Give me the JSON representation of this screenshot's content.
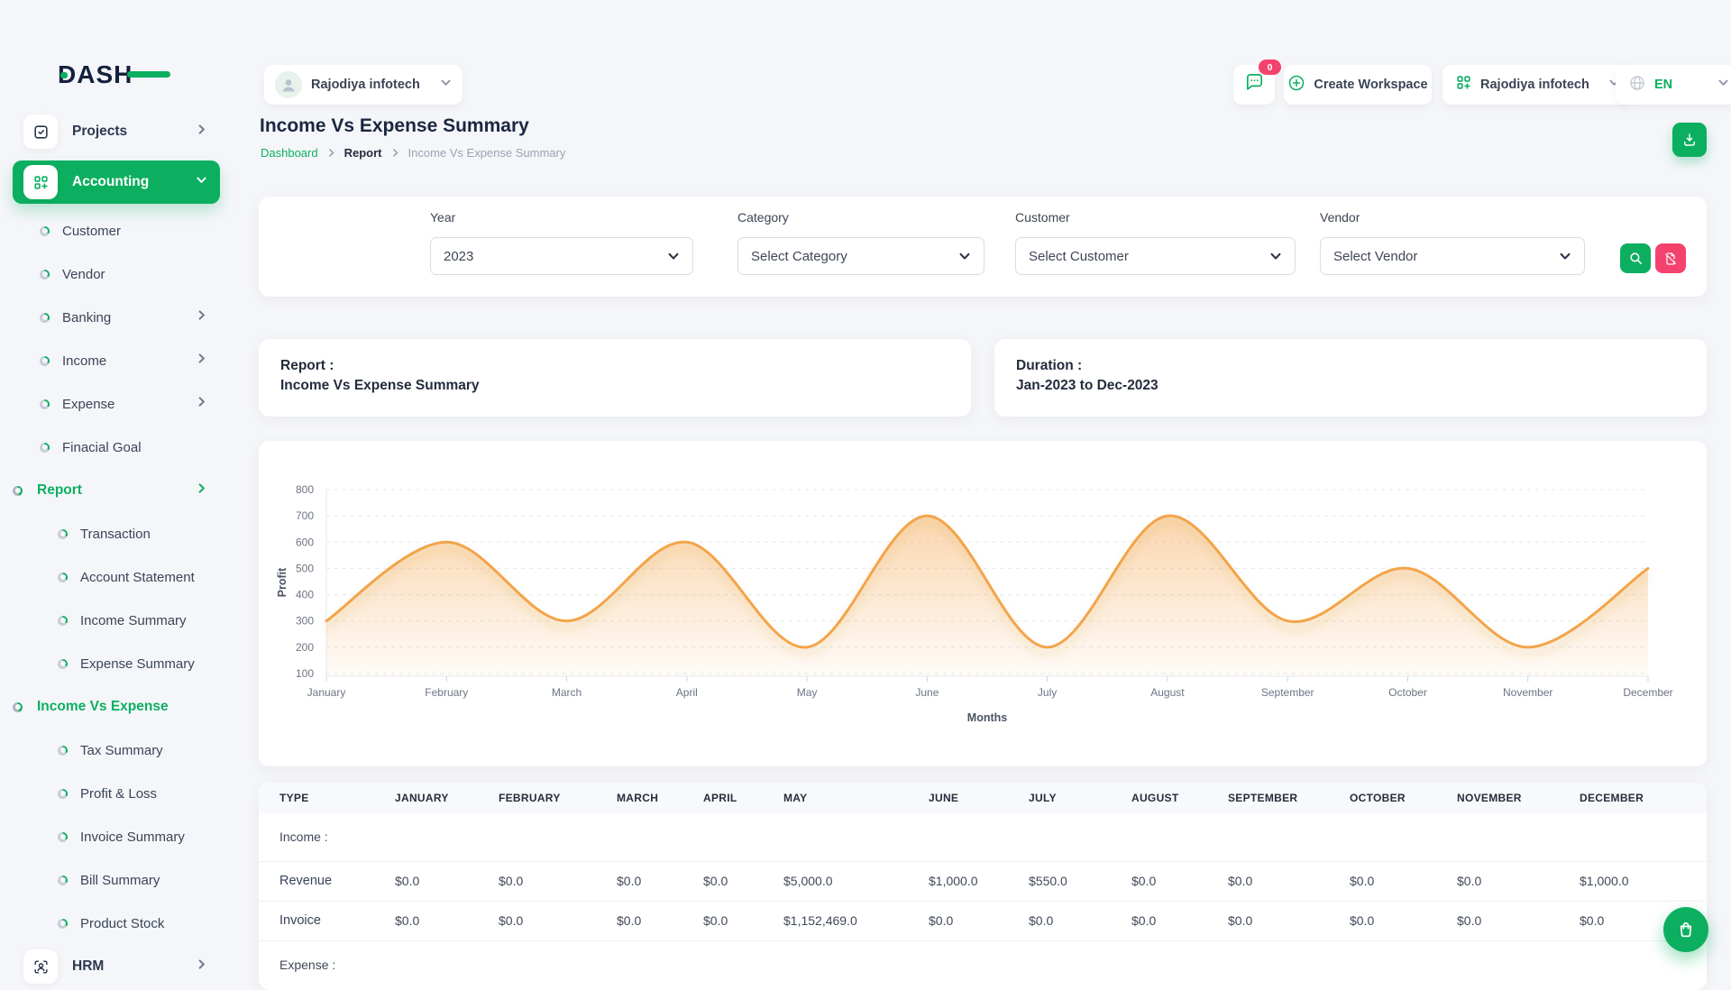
{
  "app": {
    "logo_text": "DASH"
  },
  "colors": {
    "green": "#0caf60",
    "pink": "#f4426e",
    "orange": "#f3a44a",
    "navy": "#14213d"
  },
  "sidebar": {
    "items": [
      {
        "label": "Projects",
        "type": "tile",
        "icon": "checkbox-icon",
        "chevron": "right"
      },
      {
        "label": "Accounting",
        "type": "tile-active",
        "icon": "grid-plus-icon",
        "chevron": "down"
      },
      {
        "label": "Customer",
        "type": "sub"
      },
      {
        "label": "Vendor",
        "type": "sub"
      },
      {
        "label": "Banking",
        "type": "sub",
        "chevron": "right"
      },
      {
        "label": "Income",
        "type": "sub",
        "chevron": "right"
      },
      {
        "label": "Expense",
        "type": "sub",
        "chevron": "right"
      },
      {
        "label": "Finacial Goal",
        "type": "sub"
      },
      {
        "label": "Report",
        "type": "sub-active",
        "chevron": "right"
      },
      {
        "label": "Transaction",
        "type": "sub2"
      },
      {
        "label": "Account Statement",
        "type": "sub2"
      },
      {
        "label": "Income Summary",
        "type": "sub2"
      },
      {
        "label": "Expense Summary",
        "type": "sub2"
      },
      {
        "label": "Income Vs Expense",
        "type": "sub2-active"
      },
      {
        "label": "Tax Summary",
        "type": "sub2"
      },
      {
        "label": "Profit & Loss",
        "type": "sub2"
      },
      {
        "label": "Invoice Summary",
        "type": "sub2"
      },
      {
        "label": "Bill Summary",
        "type": "sub2"
      },
      {
        "label": "Product Stock",
        "type": "sub2"
      },
      {
        "label": "HRM",
        "type": "tile",
        "icon": "user-frame-icon",
        "chevron": "right"
      }
    ]
  },
  "topbar": {
    "workspace_user": "Rajodiya infotech",
    "chat_badge": "0",
    "create_workspace": "Create Workspace",
    "workspace_name": "Rajodiya infotech",
    "language": "EN"
  },
  "page": {
    "title": "Income Vs Expense Summary",
    "breadcrumb": [
      "Dashboard",
      "Report",
      "Income Vs Expense Summary"
    ]
  },
  "filters": {
    "year": {
      "label": "Year",
      "value": "2023"
    },
    "category": {
      "label": "Category",
      "value": "Select Category"
    },
    "customer": {
      "label": "Customer",
      "value": "Select Customer"
    },
    "vendor": {
      "label": "Vendor",
      "value": "Select Vendor"
    }
  },
  "summary": {
    "report_label": "Report :",
    "report_value": "Income Vs Expense Summary",
    "duration_label": "Duration :",
    "duration_value": "Jan-2023 to Dec-2023"
  },
  "chart_data": {
    "type": "area",
    "x": [
      "January",
      "February",
      "March",
      "April",
      "May",
      "June",
      "July",
      "August",
      "September",
      "October",
      "November",
      "December"
    ],
    "series": [
      {
        "name": "Profit",
        "values": [
          300,
          600,
          300,
          600,
          200,
          700,
          200,
          700,
          300,
          500,
          200,
          500
        ]
      }
    ],
    "title": "",
    "xlabel": "Months",
    "ylabel": "Profit",
    "ylim": [
      100,
      800
    ],
    "yticks": [
      100,
      200,
      300,
      400,
      500,
      600,
      700,
      800
    ],
    "grid": "horizontal-dashed",
    "legend": "none",
    "line_color": "#f3a44a"
  },
  "table": {
    "headers": [
      "TYPE",
      "JANUARY",
      "FEBRUARY",
      "MARCH",
      "APRIL",
      "MAY",
      "JUNE",
      "JULY",
      "AUGUST",
      "SEPTEMBER",
      "OCTOBER",
      "NOVEMBER",
      "DECEMBER"
    ],
    "sections": [
      {
        "label": "Income :",
        "rows": [
          {
            "type": "Revenue",
            "values": [
              "$0.0",
              "$0.0",
              "$0.0",
              "$0.0",
              "$5,000.0",
              "$1,000.0",
              "$550.0",
              "$0.0",
              "$0.0",
              "$0.0",
              "$0.0",
              "$1,000.0"
            ]
          },
          {
            "type": "Invoice",
            "values": [
              "$0.0",
              "$0.0",
              "$0.0",
              "$0.0",
              "$1,152,469.0",
              "$0.0",
              "$0.0",
              "$0.0",
              "$0.0",
              "$0.0",
              "$0.0",
              "$0.0"
            ]
          }
        ]
      },
      {
        "label": "Expense :",
        "rows": []
      }
    ]
  }
}
